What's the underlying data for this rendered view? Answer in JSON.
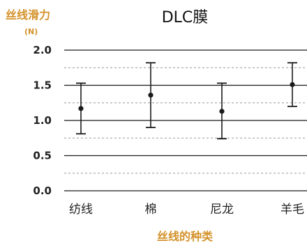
{
  "chart_data": {
    "type": "scatter",
    "title": "DLC膜",
    "ylabel": "丝线滑力",
    "yunit": "(N)",
    "xlabel": "丝线的种类",
    "categories": [
      "纺线",
      "棉",
      "尼龙",
      "羊毛"
    ],
    "values": [
      1.17,
      1.36,
      1.13,
      1.51
    ],
    "error_low": [
      0.81,
      0.9,
      0.74,
      1.2
    ],
    "error_high": [
      1.53,
      1.82,
      1.53,
      1.82
    ],
    "ylim": [
      0,
      2.0
    ],
    "yticks": [
      "0.0",
      "0.5",
      "1.0",
      "1.5",
      "2.0"
    ],
    "minor_gridlines": [
      0.25,
      0.75,
      1.25,
      1.75
    ],
    "grid": true,
    "colors": {
      "axis_label": "#d4922b",
      "marker": "#1a1a1a",
      "major_grid": "#1a1a1a",
      "minor_grid": "#999999"
    }
  }
}
